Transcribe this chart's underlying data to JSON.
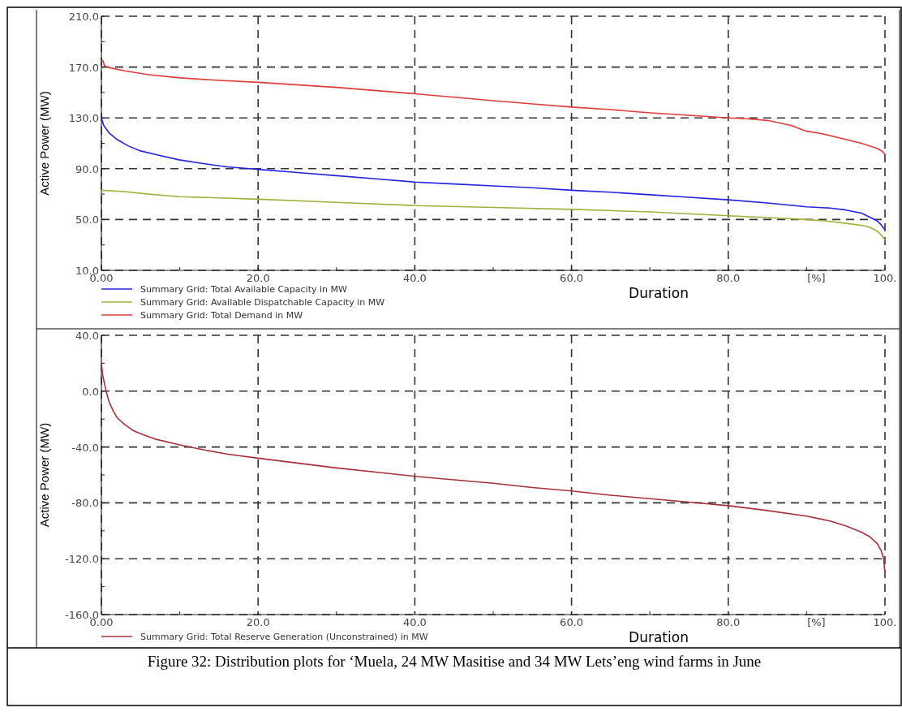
{
  "chart_data": [
    {
      "type": "line",
      "ylabel": "Active Power (MW)",
      "xlabel": "Duration",
      "annotations": [
        "[%]"
      ],
      "xlim": [
        0,
        100
      ],
      "ylim": [
        10,
        210
      ],
      "xticks": [
        {
          "value": 0,
          "label": "0.00"
        },
        {
          "value": 10,
          "label": null
        },
        {
          "value": 20,
          "label": "20.0"
        },
        {
          "value": 30,
          "label": null
        },
        {
          "value": 40,
          "label": "40.0"
        },
        {
          "value": 50,
          "label": null
        },
        {
          "value": 60,
          "label": "60.0"
        },
        {
          "value": 70,
          "label": null
        },
        {
          "value": 80,
          "label": "80.0"
        },
        {
          "value": 90,
          "label": null
        },
        {
          "value": 100,
          "label": "100."
        }
      ],
      "yticks": [
        {
          "value": 10,
          "label": "10.0"
        },
        {
          "value": 30,
          "label": null
        },
        {
          "value": 50,
          "label": "50.0"
        },
        {
          "value": 70,
          "label": null
        },
        {
          "value": 90,
          "label": "90.0"
        },
        {
          "value": 110,
          "label": null
        },
        {
          "value": 130,
          "label": "130.0"
        },
        {
          "value": 150,
          "label": null
        },
        {
          "value": 170,
          "label": "170.0"
        },
        {
          "value": 190,
          "label": null
        },
        {
          "value": 210,
          "label": "210.0"
        }
      ],
      "grid": true,
      "legend": "bottom",
      "series": [
        {
          "name": "Summary Grid: Total Available Capacity in MW",
          "color": "#2323e0",
          "x": [
            0,
            0.3,
            1,
            2,
            3.4,
            5,
            7,
            9.9,
            13,
            16,
            20,
            25,
            30,
            35,
            40,
            45,
            50,
            55,
            60,
            65,
            70,
            75,
            80,
            85,
            90,
            93,
            95,
            97,
            98,
            99,
            99.5,
            100
          ],
          "values": [
            130,
            124,
            118,
            113,
            108,
            104,
            101,
            97,
            94,
            91.5,
            89.5,
            87,
            84.5,
            82,
            79.5,
            78,
            76.5,
            75,
            73,
            71.5,
            69.5,
            67.5,
            65.5,
            63,
            60,
            59,
            57.5,
            55,
            52,
            49,
            46,
            42
          ]
        },
        {
          "name": "Summary Grid: Available Dispatchable Capacity in MW",
          "color": "#a6ae3c",
          "x": [
            0,
            3,
            6,
            10,
            15,
            20,
            30,
            40,
            50,
            60,
            70,
            80,
            85,
            90,
            93,
            95,
            97,
            98,
            99,
            99.5,
            100
          ],
          "values": [
            73,
            72,
            70,
            68,
            67,
            66,
            63.5,
            61,
            59.5,
            58,
            56,
            53,
            51.5,
            50,
            48.5,
            47,
            45.5,
            44,
            41,
            38,
            34
          ]
        },
        {
          "name": "Summary Grid: Total Demand in MW",
          "color": "#e33a3a",
          "x": [
            0,
            0.2,
            0.4,
            1,
            3,
            6,
            10,
            15,
            20,
            30,
            40,
            50,
            55,
            60,
            65,
            70,
            75,
            80,
            82,
            85,
            88,
            90,
            92,
            95,
            97,
            99,
            99.7,
            100
          ],
          "values": [
            175,
            175,
            171,
            169.5,
            167,
            164,
            161.5,
            159.5,
            158,
            154,
            149,
            143.5,
            141,
            138.5,
            136.5,
            134,
            132,
            130,
            129.5,
            128,
            124,
            119.5,
            117.5,
            113,
            110,
            106,
            103.5,
            101
          ]
        }
      ]
    },
    {
      "type": "line",
      "ylabel": "Active Power (MW)",
      "xlabel": "Duration",
      "annotations": [
        "[%]",
        "Figure 32: Distribution plots for ‘Muela, 24 MW Masitise and 34 MW Lets’eng wind farms in June"
      ],
      "xlim": [
        0,
        100
      ],
      "ylim": [
        -160,
        40
      ],
      "xticks": [
        {
          "value": 0,
          "label": "0.00"
        },
        {
          "value": 10,
          "label": null
        },
        {
          "value": 20,
          "label": "20.0"
        },
        {
          "value": 30,
          "label": null
        },
        {
          "value": 40,
          "label": "40.0"
        },
        {
          "value": 50,
          "label": null
        },
        {
          "value": 60,
          "label": "60.0"
        },
        {
          "value": 70,
          "label": null
        },
        {
          "value": 80,
          "label": "80.0"
        },
        {
          "value": 90,
          "label": null
        },
        {
          "value": 100,
          "label": "100."
        }
      ],
      "yticks": [
        {
          "value": -160,
          "label": "-160.0"
        },
        {
          "value": -140,
          "label": null
        },
        {
          "value": -120,
          "label": "-120.0"
        },
        {
          "value": -100,
          "label": null
        },
        {
          "value": -80,
          "label": "-80.0"
        },
        {
          "value": -60,
          "label": null
        },
        {
          "value": -40,
          "label": "-40.0"
        },
        {
          "value": -20,
          "label": null
        },
        {
          "value": 0,
          "label": "0.0"
        },
        {
          "value": 20,
          "label": null
        },
        {
          "value": 40,
          "label": "40.0"
        }
      ],
      "grid": true,
      "legend": "bottom",
      "series": [
        {
          "name": "Summary Grid: Total Reserve Generation (Unconstrained) in MW",
          "color": "#a8303a",
          "x": [
            0,
            0.15,
            0.3,
            0.6,
            1,
            1.5,
            2,
            3,
            4,
            5,
            7,
            10,
            13,
            16,
            20,
            25,
            30,
            35,
            40,
            45,
            50,
            55,
            60,
            65,
            70,
            75,
            80,
            85,
            90,
            93,
            95,
            97,
            98,
            99,
            99.5,
            99.8,
            100
          ],
          "values": [
            20,
            12,
            8,
            0,
            -8,
            -14,
            -19,
            -24,
            -28,
            -30.5,
            -34.5,
            -38.5,
            -42,
            -45,
            -48,
            -51.5,
            -55,
            -58,
            -61,
            -63.5,
            -66,
            -69,
            -71.5,
            -74.5,
            -77,
            -79.5,
            -82,
            -85.5,
            -89.5,
            -93,
            -96.5,
            -101,
            -104,
            -109,
            -114,
            -119,
            -130
          ]
        }
      ]
    }
  ]
}
